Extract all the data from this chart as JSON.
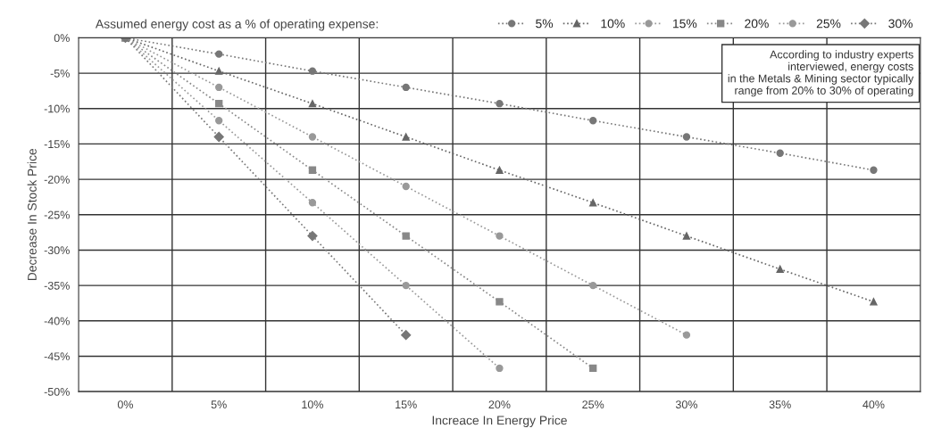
{
  "chart_data": {
    "type": "line",
    "legend_title": "Assumed energy cost as a % of operating expense:",
    "xlabel": "Increace In Energy Price",
    "ylabel": "Decrease In Stock Price",
    "categories": [
      "0%",
      "5%",
      "10%",
      "15%",
      "20%",
      "25%",
      "30%",
      "35%",
      "40%"
    ],
    "series": [
      {
        "name": "5%",
        "color": "#777777",
        "marker": "circle",
        "values": [
          0,
          -2.3,
          -4.7,
          -7,
          -9.3,
          -11.7,
          -14,
          -16.3,
          -18.7
        ]
      },
      {
        "name": "10%",
        "color": "#666666",
        "marker": "triangle",
        "values": [
          0,
          -4.7,
          -9.3,
          -14,
          -18.7,
          -23.3,
          -28,
          -32.7,
          -37.3
        ]
      },
      {
        "name": "15%",
        "color": "#999999",
        "marker": "circle",
        "values": [
          0,
          -7,
          -14,
          -21,
          -28,
          -35,
          -42,
          null,
          null
        ]
      },
      {
        "name": "20%",
        "color": "#888888",
        "marker": "square",
        "values": [
          0,
          -9.3,
          -18.7,
          -28,
          -37.3,
          -46.7,
          null,
          null,
          null
        ]
      },
      {
        "name": "25%",
        "color": "#999999",
        "marker": "circle",
        "values": [
          0,
          -11.7,
          -23.3,
          -35,
          -46.7,
          null,
          null,
          null,
          null
        ]
      },
      {
        "name": "30%",
        "color": "#777777",
        "marker": "diamond",
        "values": [
          0,
          -14,
          -28,
          -42,
          null,
          null,
          null,
          null,
          null
        ]
      }
    ],
    "ylim": [
      -50,
      0
    ],
    "yticks": [
      {
        "value": 0,
        "label": "0%"
      },
      {
        "value": -5,
        "label": "-5%"
      },
      {
        "value": -10,
        "label": "-10%"
      },
      {
        "value": -15,
        "label": "-15%"
      },
      {
        "value": -20,
        "label": "-20%"
      },
      {
        "value": -25,
        "label": "-25%"
      },
      {
        "value": -30,
        "label": "-30%"
      },
      {
        "value": -35,
        "label": "-35%"
      },
      {
        "value": -40,
        "label": "-40%"
      },
      {
        "value": -45,
        "label": "-45%"
      },
      {
        "value": -50,
        "label": "-50%"
      }
    ],
    "grid": true,
    "legend": "top right",
    "line_style": "dotted",
    "annotations": [
      "According to industry experts\ninterviewed, energy costs\nin the Metals & Mining sector typically\nrange from 20% to 30% of operating"
    ]
  }
}
